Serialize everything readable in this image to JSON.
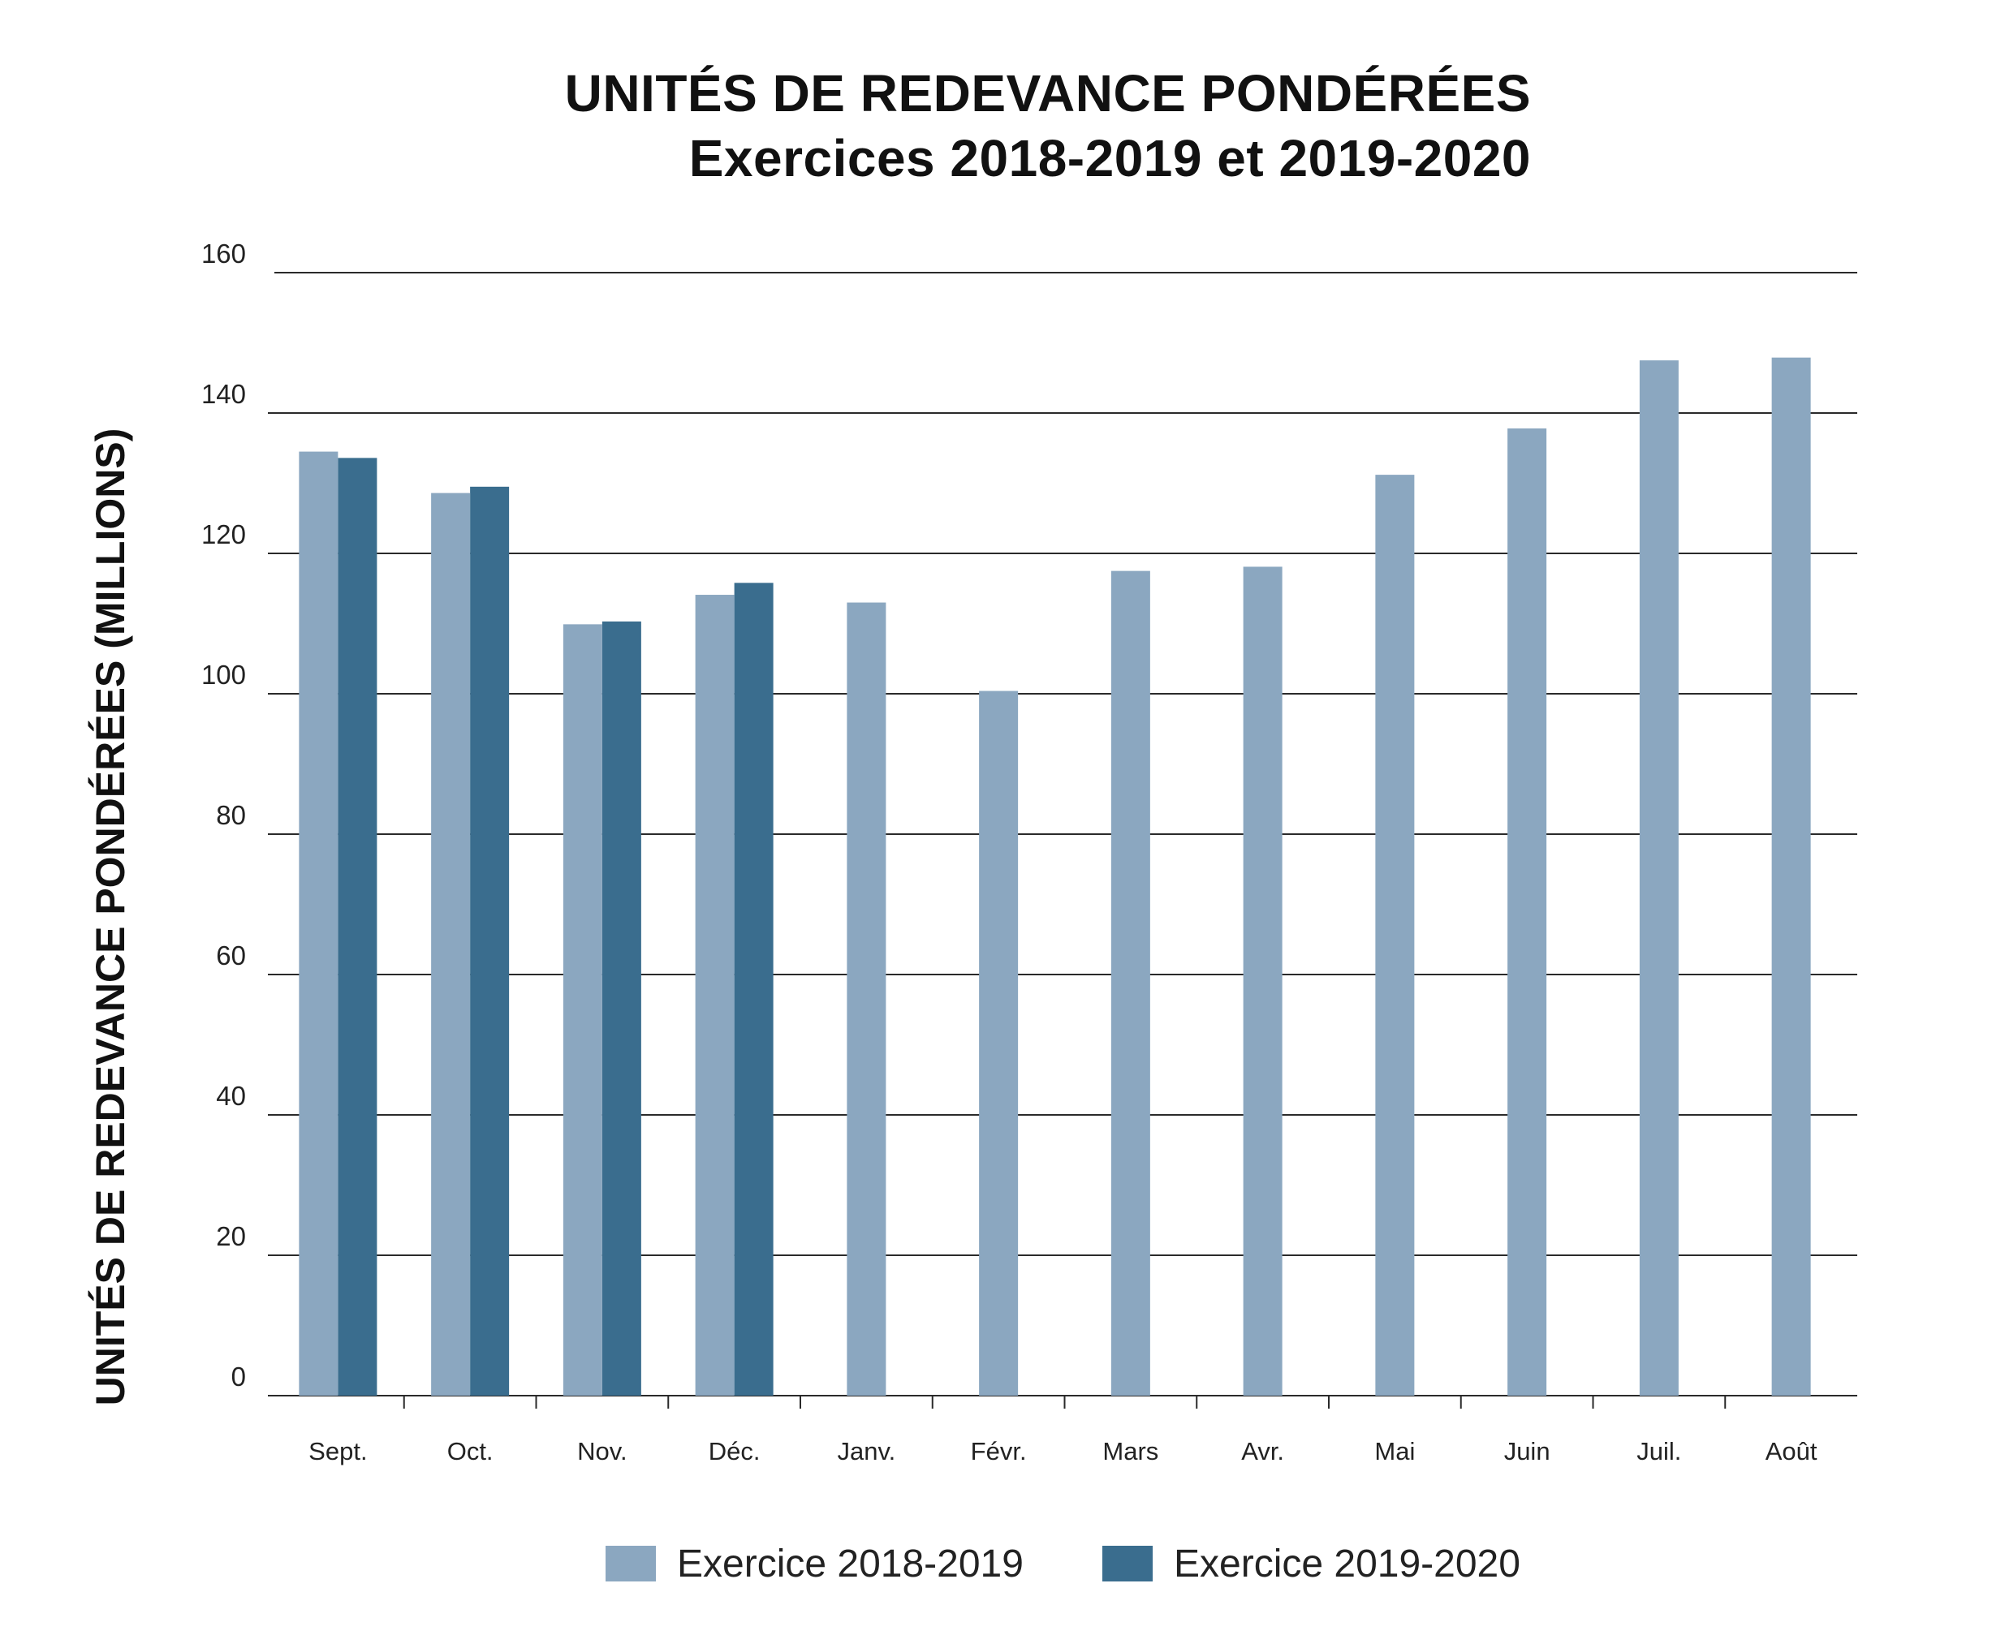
{
  "title": {
    "line1": "UNITÉS DE REDEVANCE PONDÉRÉES",
    "line2": "Exercices 2018-2019 et 2019-2020"
  },
  "chart_data": {
    "type": "bar",
    "title": "UNITÉS DE REDEVANCE PONDÉRÉES — Exercices 2018-2019 et 2019-2020",
    "xlabel": "",
    "ylabel": "UNITÉS DE REDEVANCE PONDÉRÉES (MILLIONS)",
    "ylim": [
      0,
      160
    ],
    "yticks": [
      0,
      20,
      40,
      60,
      80,
      100,
      120,
      140,
      160
    ],
    "grid": true,
    "legend_position": "bottom",
    "categories": [
      "Sept.",
      "Oct.",
      "Nov.",
      "Déc.",
      "Janv.",
      "Févr.",
      "Mars",
      "Avr.",
      "Mai",
      "Juin",
      "Juil.",
      "Août"
    ],
    "series": [
      {
        "name": "Exercice 2018-2019",
        "color": "#8ba7c0",
        "values": [
          134.5,
          128.6,
          109.9,
          114.1,
          113.0,
          100.4,
          117.5,
          118.1,
          131.2,
          137.8,
          147.5,
          147.9
        ]
      },
      {
        "name": "Exercice 2019-2020",
        "color": "#3a6d8e",
        "values": [
          133.6,
          129.5,
          110.3,
          115.8,
          null,
          null,
          null,
          null,
          null,
          null,
          null,
          null
        ]
      }
    ]
  }
}
